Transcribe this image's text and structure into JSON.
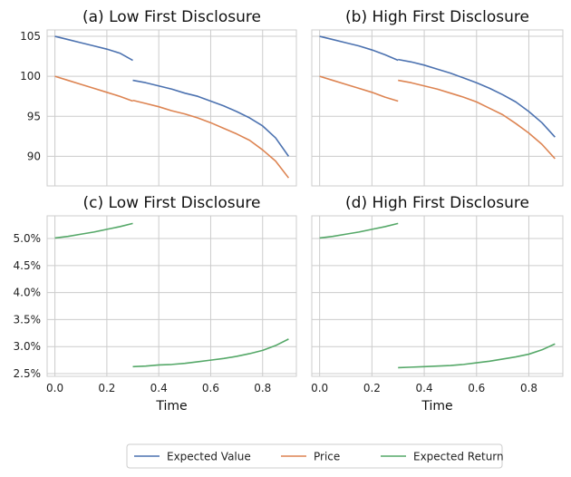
{
  "chart_data": [
    {
      "type": "line",
      "title": "(a) Low First Disclosure",
      "xlabel": "",
      "ylabel": "",
      "xlim": [
        -0.03,
        0.93
      ],
      "ylim": [
        86.3,
        105.8
      ],
      "xticks": [
        0.0,
        0.2,
        0.4,
        0.6,
        0.8
      ],
      "xticklabels": [
        "",
        "",
        "",
        "",
        ""
      ],
      "yticks": [
        90,
        95,
        100,
        105
      ],
      "yticklabels": [
        "90",
        "95",
        "100",
        "105"
      ],
      "grid": true,
      "series": [
        {
          "name": "Expected Value",
          "color": "#4c72b0",
          "segments": [
            [
              [
                0.0,
                105.0
              ],
              [
                0.05,
                104.6
              ],
              [
                0.1,
                104.2
              ],
              [
                0.15,
                103.8
              ],
              [
                0.2,
                103.4
              ],
              [
                0.25,
                102.9
              ],
              [
                0.3,
                102.0
              ]
            ],
            [
              [
                0.3,
                99.5
              ],
              [
                0.35,
                99.2
              ],
              [
                0.4,
                98.8
              ],
              [
                0.45,
                98.4
              ],
              [
                0.5,
                97.9
              ],
              [
                0.55,
                97.5
              ],
              [
                0.6,
                96.9
              ],
              [
                0.65,
                96.3
              ],
              [
                0.7,
                95.6
              ],
              [
                0.75,
                94.8
              ],
              [
                0.8,
                93.8
              ],
              [
                0.85,
                92.3
              ],
              [
                0.9,
                90.0
              ]
            ]
          ]
        },
        {
          "name": "Price",
          "color": "#dd8452",
          "segments": [
            [
              [
                0.0,
                100.0
              ],
              [
                0.05,
                99.5
              ],
              [
                0.1,
                99.0
              ],
              [
                0.15,
                98.5
              ],
              [
                0.2,
                98.0
              ],
              [
                0.25,
                97.5
              ],
              [
                0.3,
                96.9
              ]
            ],
            [
              [
                0.3,
                97.0
              ],
              [
                0.35,
                96.6
              ],
              [
                0.4,
                96.2
              ],
              [
                0.45,
                95.7
              ],
              [
                0.5,
                95.3
              ],
              [
                0.55,
                94.8
              ],
              [
                0.6,
                94.2
              ],
              [
                0.65,
                93.5
              ],
              [
                0.7,
                92.8
              ],
              [
                0.75,
                92.0
              ],
              [
                0.8,
                90.8
              ],
              [
                0.85,
                89.4
              ],
              [
                0.9,
                87.3
              ]
            ]
          ]
        }
      ]
    },
    {
      "type": "line",
      "title": "(b) High First Disclosure",
      "xlabel": "",
      "ylabel": "",
      "xlim": [
        -0.03,
        0.93
      ],
      "ylim": [
        86.3,
        105.8
      ],
      "xticks": [
        0.0,
        0.2,
        0.4,
        0.6,
        0.8
      ],
      "xticklabels": [
        "",
        "",
        "",
        "",
        ""
      ],
      "yticks": [
        90,
        95,
        100,
        105
      ],
      "yticklabels": [
        "",
        "",
        "",
        ""
      ],
      "grid": true,
      "series": [
        {
          "name": "Expected Value",
          "color": "#4c72b0",
          "segments": [
            [
              [
                0.0,
                105.0
              ],
              [
                0.05,
                104.6
              ],
              [
                0.1,
                104.2
              ],
              [
                0.15,
                103.8
              ],
              [
                0.2,
                103.3
              ],
              [
                0.25,
                102.7
              ],
              [
                0.3,
                102.0
              ]
            ],
            [
              [
                0.3,
                102.1
              ],
              [
                0.35,
                101.8
              ],
              [
                0.4,
                101.4
              ],
              [
                0.45,
                100.9
              ],
              [
                0.5,
                100.4
              ],
              [
                0.55,
                99.8
              ],
              [
                0.6,
                99.2
              ],
              [
                0.65,
                98.5
              ],
              [
                0.7,
                97.7
              ],
              [
                0.75,
                96.8
              ],
              [
                0.8,
                95.6
              ],
              [
                0.85,
                94.2
              ],
              [
                0.9,
                92.4
              ]
            ]
          ]
        },
        {
          "name": "Price",
          "color": "#dd8452",
          "segments": [
            [
              [
                0.0,
                100.0
              ],
              [
                0.05,
                99.5
              ],
              [
                0.1,
                99.0
              ],
              [
                0.15,
                98.5
              ],
              [
                0.2,
                98.0
              ],
              [
                0.25,
                97.4
              ],
              [
                0.3,
                96.9
              ]
            ],
            [
              [
                0.3,
                99.5
              ],
              [
                0.35,
                99.2
              ],
              [
                0.4,
                98.8
              ],
              [
                0.45,
                98.4
              ],
              [
                0.5,
                97.9
              ],
              [
                0.55,
                97.4
              ],
              [
                0.6,
                96.8
              ],
              [
                0.65,
                96.0
              ],
              [
                0.7,
                95.2
              ],
              [
                0.75,
                94.1
              ],
              [
                0.8,
                92.9
              ],
              [
                0.85,
                91.5
              ],
              [
                0.9,
                89.7
              ]
            ]
          ]
        }
      ]
    },
    {
      "type": "line",
      "title": "(c) Low First Disclosure",
      "xlabel": "Time",
      "ylabel": "",
      "xlim": [
        -0.03,
        0.93
      ],
      "ylim": [
        0.0245,
        0.0542
      ],
      "xticks": [
        0.0,
        0.2,
        0.4,
        0.6,
        0.8
      ],
      "xticklabels": [
        "0.0",
        "0.2",
        "0.4",
        "0.6",
        "0.8"
      ],
      "yticks": [
        0.025,
        0.03,
        0.035,
        0.04,
        0.045,
        0.05
      ],
      "yticklabels": [
        "2.5%",
        "3.0%",
        "3.5%",
        "4.0%",
        "4.5%",
        "5.0%"
      ],
      "grid": true,
      "series": [
        {
          "name": "Expected Return",
          "color": "#55a868",
          "segments": [
            [
              [
                0.0,
                0.0501
              ],
              [
                0.05,
                0.0504
              ],
              [
                0.1,
                0.0508
              ],
              [
                0.15,
                0.0512
              ],
              [
                0.2,
                0.0517
              ],
              [
                0.25,
                0.0522
              ],
              [
                0.3,
                0.0528
              ]
            ],
            [
              [
                0.3,
                0.0263
              ],
              [
                0.35,
                0.0264
              ],
              [
                0.4,
                0.0266
              ],
              [
                0.45,
                0.0267
              ],
              [
                0.5,
                0.0269
              ],
              [
                0.55,
                0.0272
              ],
              [
                0.6,
                0.0275
              ],
              [
                0.65,
                0.0278
              ],
              [
                0.7,
                0.0282
              ],
              [
                0.75,
                0.0287
              ],
              [
                0.8,
                0.0293
              ],
              [
                0.85,
                0.0302
              ],
              [
                0.9,
                0.0314
              ]
            ]
          ]
        }
      ]
    },
    {
      "type": "line",
      "title": "(d) High First Disclosure",
      "xlabel": "Time",
      "ylabel": "",
      "xlim": [
        -0.03,
        0.93
      ],
      "ylim": [
        0.0245,
        0.0542
      ],
      "xticks": [
        0.0,
        0.2,
        0.4,
        0.6,
        0.8
      ],
      "xticklabels": [
        "0.0",
        "0.2",
        "0.4",
        "0.6",
        "0.8"
      ],
      "yticks": [
        0.025,
        0.03,
        0.035,
        0.04,
        0.045,
        0.05
      ],
      "yticklabels": [
        "",
        "",
        "",
        "",
        "",
        ""
      ],
      "grid": true,
      "series": [
        {
          "name": "Expected Return",
          "color": "#55a868",
          "segments": [
            [
              [
                0.0,
                0.0501
              ],
              [
                0.05,
                0.0504
              ],
              [
                0.1,
                0.0508
              ],
              [
                0.15,
                0.0512
              ],
              [
                0.2,
                0.0517
              ],
              [
                0.25,
                0.0522
              ],
              [
                0.3,
                0.0528
              ]
            ],
            [
              [
                0.3,
                0.0261
              ],
              [
                0.35,
                0.0262
              ],
              [
                0.4,
                0.0263
              ],
              [
                0.45,
                0.0264
              ],
              [
                0.5,
                0.0265
              ],
              [
                0.55,
                0.0267
              ],
              [
                0.6,
                0.027
              ],
              [
                0.65,
                0.0273
              ],
              [
                0.7,
                0.0277
              ],
              [
                0.75,
                0.0281
              ],
              [
                0.8,
                0.0286
              ],
              [
                0.85,
                0.0294
              ],
              [
                0.9,
                0.0305
              ]
            ]
          ]
        }
      ]
    }
  ],
  "legend": {
    "placement": "bottom-center",
    "entries": [
      {
        "label": "Expected Value",
        "color": "#4c72b0"
      },
      {
        "label": "Price",
        "color": "#dd8452"
      },
      {
        "label": "Expected Return",
        "color": "#55a868"
      }
    ]
  }
}
